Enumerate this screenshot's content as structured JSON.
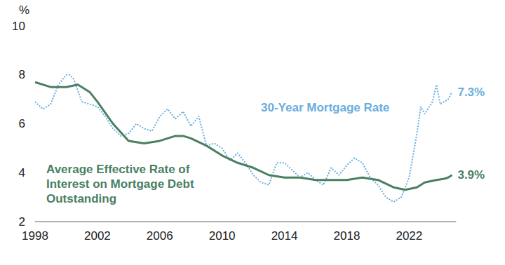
{
  "chart_data": {
    "type": "line",
    "ylabel": "%",
    "xlim": [
      1998,
      2025
    ],
    "xticks": [
      1998,
      2002,
      2006,
      2010,
      2014,
      2018,
      2022
    ],
    "ylim": [
      2,
      10
    ],
    "yticks": [
      2,
      4,
      6,
      8,
      10
    ],
    "grid": false,
    "series": [
      {
        "name": "30-Year Mortgage Rate",
        "color": "#6aaede",
        "line_style": "dotted",
        "x": [
          1998.0,
          1998.5,
          1999.0,
          1999.5,
          2000.0,
          2000.25,
          2000.5,
          2001.0,
          2001.5,
          2002.0,
          2002.5,
          2003.0,
          2003.5,
          2004.0,
          2004.5,
          2005.0,
          2005.5,
          2006.0,
          2006.5,
          2007.0,
          2007.5,
          2008.0,
          2008.5,
          2009.0,
          2009.5,
          2010.0,
          2010.5,
          2011.0,
          2011.5,
          2012.0,
          2012.5,
          2013.0,
          2013.5,
          2014.0,
          2014.5,
          2015.0,
          2015.5,
          2016.0,
          2016.5,
          2017.0,
          2017.5,
          2018.0,
          2018.5,
          2019.0,
          2019.5,
          2020.0,
          2020.5,
          2021.0,
          2021.5,
          2022.0,
          2022.5,
          2022.75,
          2023.0,
          2023.5,
          2023.75,
          2024.0,
          2024.5,
          2024.75
        ],
        "values": [
          6.9,
          6.6,
          6.8,
          7.6,
          8.0,
          8.0,
          7.8,
          6.9,
          6.8,
          6.7,
          6.3,
          5.8,
          5.5,
          5.6,
          6.0,
          5.8,
          5.7,
          6.3,
          6.6,
          6.2,
          6.5,
          5.9,
          6.3,
          5.1,
          5.2,
          5.0,
          4.5,
          4.8,
          4.4,
          3.9,
          3.6,
          3.5,
          4.4,
          4.4,
          4.1,
          3.8,
          4.0,
          3.7,
          3.5,
          4.2,
          3.9,
          4.3,
          4.6,
          4.4,
          3.8,
          3.5,
          3.0,
          2.8,
          3.0,
          3.8,
          5.6,
          6.7,
          6.4,
          6.9,
          7.6,
          6.8,
          7.0,
          7.3
        ],
        "value_labels": [
          null,
          null,
          null,
          null,
          null,
          null,
          null,
          null,
          null,
          null,
          null,
          null,
          null,
          null,
          null,
          null,
          null,
          null,
          null,
          null,
          null,
          null,
          null,
          null,
          null,
          null,
          null,
          null,
          null,
          null,
          null,
          null,
          null,
          null,
          null,
          null,
          null,
          null,
          null,
          null,
          null,
          null,
          null,
          null,
          null,
          null,
          null,
          null,
          null,
          null,
          null,
          null,
          null,
          null,
          null,
          null,
          null,
          "7.3%"
        ]
      },
      {
        "name": "Average Effective Rate of Interest on Mortgage Debt Outstanding",
        "color": "#4a7f62",
        "line_style": "solid",
        "x": [
          1998.0,
          1999.0,
          2000.0,
          2000.75,
          2001.5,
          2002.0,
          2003.0,
          2004.0,
          2005.0,
          2006.0,
          2007.0,
          2007.5,
          2008.0,
          2009.0,
          2010.0,
          2011.0,
          2012.0,
          2013.0,
          2014.0,
          2015.0,
          2016.0,
          2017.0,
          2018.0,
          2019.0,
          2020.0,
          2021.0,
          2021.75,
          2022.5,
          2023.0,
          2023.75,
          2024.25,
          2024.5,
          2024.75
        ],
        "values": [
          7.7,
          7.5,
          7.5,
          7.6,
          7.3,
          6.9,
          6.0,
          5.3,
          5.2,
          5.3,
          5.5,
          5.5,
          5.4,
          5.1,
          4.7,
          4.4,
          4.2,
          3.9,
          3.8,
          3.8,
          3.7,
          3.7,
          3.7,
          3.8,
          3.7,
          3.4,
          3.3,
          3.4,
          3.6,
          3.7,
          3.75,
          3.8,
          3.9
        ],
        "value_labels": [
          null,
          null,
          null,
          null,
          null,
          null,
          null,
          null,
          null,
          null,
          null,
          null,
          null,
          null,
          null,
          null,
          null,
          null,
          null,
          null,
          null,
          null,
          null,
          null,
          null,
          null,
          null,
          null,
          null,
          null,
          null,
          null,
          "3.9%"
        ]
      }
    ]
  }
}
